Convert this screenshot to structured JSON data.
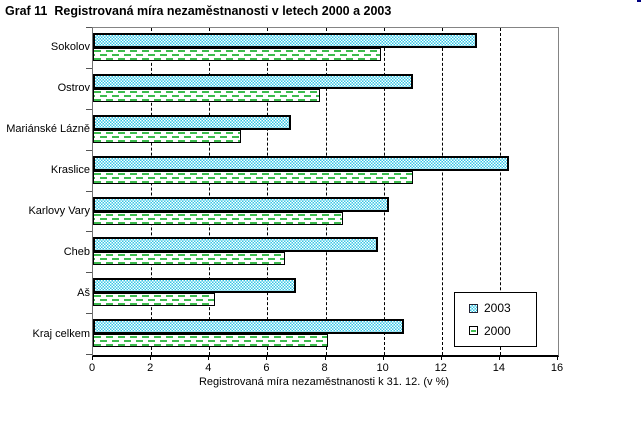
{
  "title": "Graf 11  Registrovaná míra nezaměstnanosti v letech 2000 a 2003",
  "chart_data": {
    "type": "bar",
    "orientation": "horizontal",
    "title": "Graf 11  Registrovaná míra nezaměstnanosti v letech 2000 a 2003",
    "categories": [
      "Sokolov",
      "Ostrov",
      "Mariánské Lázně",
      "Kraslice",
      "Karlovy Vary",
      "Cheb",
      "Aš",
      "Kraj celkem"
    ],
    "series": [
      {
        "name": "2003",
        "values": [
          13.2,
          11.0,
          6.8,
          14.3,
          10.2,
          9.8,
          7.0,
          10.7
        ],
        "color": "#35c7e6",
        "pattern": "cyan-checker"
      },
      {
        "name": "2000",
        "values": [
          9.9,
          7.8,
          5.1,
          11.0,
          8.6,
          6.6,
          4.2,
          8.1
        ],
        "color": "#ffffff",
        "pattern": "green-horizontal-dashes",
        "dash_color": "#3dbb4e"
      }
    ],
    "xlabel": "Registrovaná míra nezaměstnanosti k 31. 12. (v %)",
    "ylabel": "",
    "xlim": [
      0,
      16
    ],
    "xticks": [
      0,
      2,
      4,
      6,
      8,
      10,
      12,
      14,
      16
    ],
    "grid": "vertical-dashed-black",
    "legend_position": "inside-lower-right",
    "plot_border_color": "#848484"
  }
}
